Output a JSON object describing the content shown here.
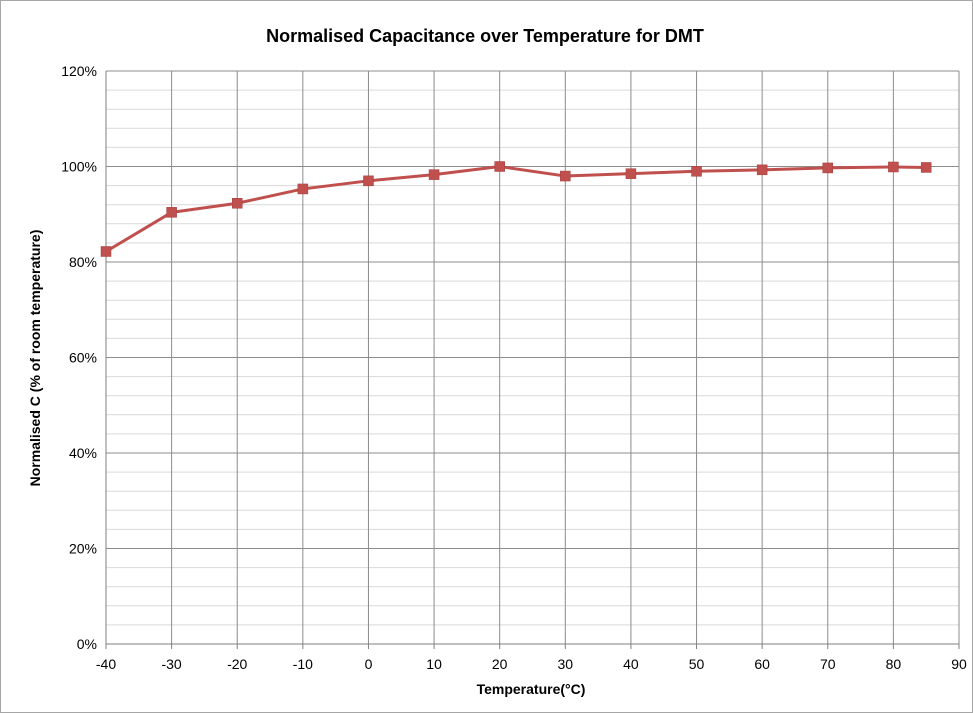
{
  "chart_data": {
    "type": "line",
    "title": "Normalised Capacitance over Temperature for DMT",
    "xlabel": "Temperature(°C)",
    "ylabel": "Normalised C (% of room temperature)",
    "xlim": [
      -40,
      90
    ],
    "ylim": [
      0,
      120
    ],
    "x_ticks": [
      -40,
      -30,
      -20,
      -10,
      0,
      10,
      20,
      30,
      40,
      50,
      60,
      70,
      80,
      90
    ],
    "y_ticks": [
      0,
      20,
      40,
      60,
      80,
      100,
      120
    ],
    "y_tick_labels": [
      "0%",
      "20%",
      "40%",
      "60%",
      "80%",
      "100%",
      "120%"
    ],
    "y_minor_step": 4,
    "grid": true,
    "legend": "none",
    "series": [
      {
        "color": "#c0504d",
        "marker": "square",
        "x": [
          -40,
          -30,
          -20,
          -10,
          0,
          10,
          20,
          30,
          40,
          50,
          60,
          70,
          80,
          85
        ],
        "y": [
          82.2,
          90.4,
          92.3,
          95.3,
          97.0,
          98.3,
          100.0,
          98.0,
          98.5,
          99.0,
          99.3,
          99.7,
          99.9,
          99.8
        ]
      }
    ]
  }
}
